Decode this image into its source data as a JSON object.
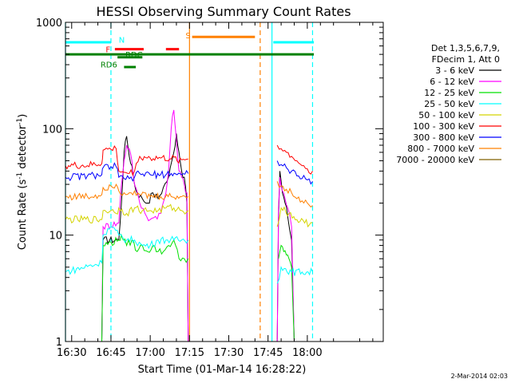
{
  "chart_data": {
    "type": "line",
    "title": "HESSI Observing Summary Count Rates",
    "xlabel": "Start Time (01-Mar-14 16:28:22)",
    "ylabel_main": "Count Rate (s",
    "ylabel_exp1": "-1",
    "ylabel_mid": " detector",
    "ylabel_exp2": "-1",
    "ylabel_close": ")",
    "yscale": "log",
    "ylim": [
      1,
      1000
    ],
    "xlim_minutes": [
      -2.37,
      119.0
    ],
    "x_ticks": [
      {
        "label": "16:30",
        "min": 0
      },
      {
        "label": "16:45",
        "min": 15
      },
      {
        "label": "17:00",
        "min": 30
      },
      {
        "label": "17:15",
        "min": 45
      },
      {
        "label": "17:30",
        "min": 60
      },
      {
        "label": "17:45",
        "min": 75
      },
      {
        "label": "18:00",
        "min": 90
      }
    ],
    "y_ticks": [
      {
        "label": "1",
        "value": 1
      },
      {
        "label": "10",
        "value": 10
      },
      {
        "label": "100",
        "value": 100
      },
      {
        "label": "1000",
        "value": 1000
      }
    ],
    "legend": {
      "header1": "Det 1,3,5,6,7,9,",
      "header2": "FDecim 1, Att 0",
      "entries": [
        {
          "label": "3 - 6 keV",
          "color": "#000000"
        },
        {
          "label": "6 - 12 keV",
          "color": "#ff00ff"
        },
        {
          "label": "12 - 25 keV",
          "color": "#00e000"
        },
        {
          "label": "25 - 50 keV",
          "color": "#00ffff"
        },
        {
          "label": "50 - 100 keV",
          "color": "#d4d400"
        },
        {
          "label": "100 - 300 keV",
          "color": "#ff0000"
        },
        {
          "label": "300 - 800 keV",
          "color": "#0000ff"
        },
        {
          "label": "800 - 7000 keV",
          "color": "#ff8000"
        },
        {
          "label": "7000 - 20000 keV",
          "color": "#806000"
        }
      ]
    },
    "series": [
      {
        "name": "3 - 6 keV",
        "color": "#000000",
        "points": [
          [
            11.5,
            0
          ],
          [
            12,
            9
          ],
          [
            18,
            9
          ],
          [
            19,
            20
          ],
          [
            20,
            60
          ],
          [
            21,
            85
          ],
          [
            22,
            55
          ],
          [
            23,
            45
          ],
          [
            24,
            30
          ],
          [
            25,
            25
          ],
          [
            27,
            22
          ],
          [
            29,
            20
          ],
          [
            31,
            25
          ],
          [
            33,
            22
          ],
          [
            35,
            28
          ],
          [
            37,
            35
          ],
          [
            39,
            60
          ],
          [
            40,
            90
          ],
          [
            41,
            60
          ],
          [
            42,
            40
          ],
          [
            43,
            35
          ],
          [
            44,
            20
          ],
          [
            44.5,
            0
          ],
          [
            null,
            null
          ],
          [
            78.5,
            0
          ],
          [
            79,
            15
          ],
          [
            79.5,
            40
          ],
          [
            80.5,
            25
          ],
          [
            81.5,
            20
          ],
          [
            82.5,
            15
          ],
          [
            84,
            9
          ],
          [
            85,
            0
          ]
        ]
      },
      {
        "name": "6 - 12 keV",
        "color": "#ff00ff",
        "points": [
          [
            11.5,
            0
          ],
          [
            12,
            12
          ],
          [
            18,
            13
          ],
          [
            19,
            30
          ],
          [
            20,
            50
          ],
          [
            21,
            70
          ],
          [
            22,
            65
          ],
          [
            23,
            50
          ],
          [
            24,
            30
          ],
          [
            26,
            20
          ],
          [
            28,
            16
          ],
          [
            30,
            14
          ],
          [
            32,
            15
          ],
          [
            34,
            16
          ],
          [
            36,
            25
          ],
          [
            37,
            40
          ],
          [
            38,
            100
          ],
          [
            39,
            150
          ],
          [
            40,
            80
          ],
          [
            41,
            40
          ],
          [
            42,
            35
          ],
          [
            43,
            30
          ],
          [
            44,
            25
          ],
          [
            44.5,
            0
          ],
          [
            null,
            null
          ],
          [
            78.5,
            0
          ],
          [
            79,
            18
          ],
          [
            79.5,
            35
          ],
          [
            80.5,
            26
          ],
          [
            81.5,
            22
          ],
          [
            82.5,
            18
          ],
          [
            84,
            12
          ],
          [
            85,
            0
          ]
        ]
      },
      {
        "name": "12 - 25 keV",
        "color": "#00e000",
        "points": [
          [
            11.5,
            1.0
          ],
          [
            12,
            8
          ],
          [
            18,
            9
          ],
          [
            19,
            10
          ],
          [
            21,
            8
          ],
          [
            23,
            9
          ],
          [
            25,
            7
          ],
          [
            27,
            8
          ],
          [
            29,
            7
          ],
          [
            31,
            8
          ],
          [
            33,
            7
          ],
          [
            35,
            7
          ],
          [
            37,
            8
          ],
          [
            39,
            9
          ],
          [
            41,
            6
          ],
          [
            43,
            6
          ],
          [
            44.5,
            6
          ],
          [
            null,
            null
          ],
          [
            79,
            6
          ],
          [
            80,
            8
          ],
          [
            81,
            7
          ],
          [
            82,
            6.5
          ],
          [
            83,
            6
          ],
          [
            84,
            5
          ],
          [
            85,
            1.0
          ]
        ]
      },
      {
        "name": "25 - 50 keV",
        "color": "#00ffff",
        "points": [
          [
            -2.4,
            4.5
          ],
          [
            11.5,
            5.5
          ],
          [
            12,
            10
          ],
          [
            15,
            12
          ],
          [
            18,
            10
          ],
          [
            21,
            9
          ],
          [
            24,
            9
          ],
          [
            27,
            8
          ],
          [
            30,
            8
          ],
          [
            33,
            9
          ],
          [
            36,
            9
          ],
          [
            39,
            9
          ],
          [
            42,
            9
          ],
          [
            44.5,
            9
          ],
          [
            null,
            null
          ],
          [
            78.5,
            3.5
          ],
          [
            80,
            5
          ],
          [
            84,
            4.5
          ],
          [
            88,
            4.5
          ],
          [
            92,
            4.5
          ]
        ]
      },
      {
        "name": "50 - 100 keV",
        "color": "#d4d400",
        "points": [
          [
            -2.4,
            14
          ],
          [
            11.5,
            14
          ],
          [
            12,
            17
          ],
          [
            15,
            17
          ],
          [
            17,
            16
          ],
          [
            18,
            18
          ],
          [
            21,
            16
          ],
          [
            24,
            18
          ],
          [
            27,
            17
          ],
          [
            30,
            17
          ],
          [
            33,
            17
          ],
          [
            36,
            18
          ],
          [
            39,
            18
          ],
          [
            42,
            17
          ],
          [
            44.5,
            17
          ],
          [
            null,
            null
          ],
          [
            78.5,
            12
          ],
          [
            80,
            18
          ],
          [
            83,
            16
          ],
          [
            86,
            14
          ],
          [
            89,
            13
          ],
          [
            92,
            13
          ]
        ]
      },
      {
        "name": "100 - 300 keV",
        "color": "#ff0000",
        "points": [
          [
            -2.4,
            45
          ],
          [
            6,
            45
          ],
          [
            11.5,
            47
          ],
          [
            12,
            63
          ],
          [
            15,
            64
          ],
          [
            17,
            65
          ],
          [
            18,
            40
          ],
          [
            20,
            39
          ],
          [
            22,
            38
          ],
          [
            24,
            40
          ],
          [
            26,
            55
          ],
          [
            30,
            53
          ],
          [
            34,
            53
          ],
          [
            38,
            52
          ],
          [
            42,
            51
          ],
          [
            44.5,
            52
          ],
          [
            null,
            null
          ],
          [
            78.5,
            70
          ],
          [
            80,
            65
          ],
          [
            82,
            60
          ],
          [
            84,
            55
          ],
          [
            86,
            50
          ],
          [
            88,
            45
          ],
          [
            90,
            42
          ],
          [
            92,
            40
          ]
        ]
      },
      {
        "name": "300 - 800 keV",
        "color": "#0000ff",
        "points": [
          [
            -2.4,
            35
          ],
          [
            6,
            36
          ],
          [
            11.5,
            37
          ],
          [
            12,
            43
          ],
          [
            15,
            44
          ],
          [
            17,
            44
          ],
          [
            18,
            35
          ],
          [
            20,
            34
          ],
          [
            22,
            34
          ],
          [
            24,
            35
          ],
          [
            26,
            38
          ],
          [
            30,
            37
          ],
          [
            34,
            37
          ],
          [
            38,
            38
          ],
          [
            42,
            37
          ],
          [
            44.5,
            38
          ],
          [
            null,
            null
          ],
          [
            78.5,
            50
          ],
          [
            80,
            46
          ],
          [
            82,
            43
          ],
          [
            84,
            40
          ],
          [
            86,
            36
          ],
          [
            88,
            34
          ],
          [
            90,
            33
          ],
          [
            92,
            32
          ]
        ]
      },
      {
        "name": "800 - 7000 keV",
        "color": "#ff8000",
        "points": [
          [
            -2.4,
            23
          ],
          [
            6,
            23
          ],
          [
            11.5,
            24
          ],
          [
            12,
            28
          ],
          [
            15,
            29
          ],
          [
            17,
            30
          ],
          [
            18,
            26
          ],
          [
            20,
            25
          ],
          [
            22,
            25
          ],
          [
            24,
            26
          ],
          [
            26,
            24
          ],
          [
            30,
            23
          ],
          [
            34,
            23
          ],
          [
            38,
            23
          ],
          [
            42,
            23
          ],
          [
            44.5,
            23
          ],
          [
            null,
            null
          ],
          [
            78.5,
            32
          ],
          [
            80,
            29
          ],
          [
            82,
            27
          ],
          [
            84,
            25
          ],
          [
            86,
            22
          ],
          [
            88,
            21
          ],
          [
            90,
            20
          ],
          [
            92,
            19
          ]
        ]
      },
      {
        "name": "7000 - 20000 keV",
        "color": "#806000",
        "points": []
      }
    ],
    "bars": [
      {
        "label": "N",
        "color": "#00ffff",
        "y": 650,
        "x0": -2.4,
        "x1": 15.0,
        "label_x": 18.0,
        "label_y": 690
      },
      {
        "label": "F",
        "color": "#ff0000",
        "y": 560,
        "x0": 16.5,
        "x1": 27.5,
        "label_x": 13.0,
        "label_y": 560
      },
      {
        "label": "RDC",
        "color": "#008000",
        "y": 470,
        "x0": 17.5,
        "x1": 27.0,
        "label_x": 20.5,
        "label_y": 500
      },
      {
        "label": "RD6",
        "color": "#008000",
        "y": 380,
        "x0": 20.0,
        "x1": 24.5,
        "label_x": 11.0,
        "label_y": 405
      },
      {
        "label": "",
        "color": "#ff0000",
        "y": 560,
        "x0": 36.0,
        "x1": 41.0,
        "label_x": 0,
        "label_y": 0
      },
      {
        "label": "S",
        "color": "#ff8000",
        "y": 730,
        "x0": 46.0,
        "x1": 70.0,
        "label_x": 43.5,
        "label_y": 760
      },
      {
        "label": "",
        "color": "#00ffff",
        "y": 650,
        "x0": 77.0,
        "x1": 92.5,
        "label_x": 0,
        "label_y": 0
      },
      {
        "label": "",
        "color": "#008000",
        "y": 500,
        "x0": -2.4,
        "x1": 92.5,
        "label_x": 0,
        "label_y": 0
      }
    ],
    "vlines": [
      {
        "min": 15.0,
        "color": "#00ffff",
        "style": "dash"
      },
      {
        "min": 45.0,
        "color": "#ff8000",
        "style": "solid"
      },
      {
        "min": 72.0,
        "color": "#ff8000",
        "style": "dash"
      },
      {
        "min": 76.5,
        "color": "#00ffff",
        "style": "solid"
      },
      {
        "min": 92.0,
        "color": "#00ffff",
        "style": "dash"
      },
      {
        "min": -2.37,
        "color": "#00ffff",
        "style": "solid"
      }
    ]
  },
  "footer": {
    "date_stamp": "2-Mar-2014 02:03"
  }
}
